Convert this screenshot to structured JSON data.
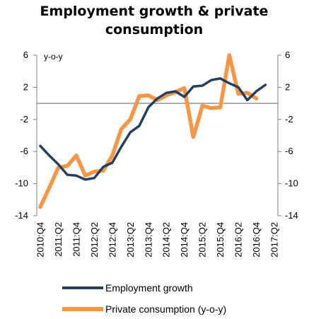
{
  "chart_data": {
    "type": "line",
    "title": "Employment growth & private consumption",
    "title_lines": [
      "Employment growth & private",
      "consumption"
    ],
    "unit_label": "y-o-y",
    "ylim": [
      -14,
      6
    ],
    "y_ticks": [
      6,
      2,
      -2,
      -6,
      -10,
      -14
    ],
    "y_tick_labels": [
      "6",
      "2",
      "-2",
      "-6",
      "-10",
      "-14"
    ],
    "reference_line": 0,
    "grid": false,
    "legend_placement": "bottom",
    "x": [
      "2010:Q4",
      "2011:Q1",
      "2011:Q2",
      "2011:Q3",
      "2011:Q4",
      "2012:Q1",
      "2012:Q2",
      "2012:Q3",
      "2012:Q4",
      "2013:Q1",
      "2013:Q2",
      "2013:Q3",
      "2013:Q4",
      "2014:Q1",
      "2014:Q2",
      "2014:Q3",
      "2014:Q4",
      "2015:Q1",
      "2015:Q2",
      "2015:Q3",
      "2015:Q4",
      "2016:Q1",
      "2016:Q2",
      "2016:Q3",
      "2016:Q4",
      "2017:Q1",
      "2017:Q2"
    ],
    "x_tick_labels": [
      "2010:Q4",
      "2011:Q2",
      "2011:Q4",
      "2012:Q2",
      "2012:Q4",
      "2013:Q2",
      "2013:Q4",
      "2014:Q2",
      "2014:Q4",
      "2015:Q2",
      "2015:Q4",
      "2016:Q2",
      "2016:Q4",
      "2017:Q2"
    ],
    "series": [
      {
        "name": "Employment growth",
        "color": "#243f60",
        "values": [
          -5.3,
          -6.5,
          -7.6,
          -8.9,
          -9.0,
          -9.5,
          -9.3,
          -7.9,
          -7.4,
          -5.4,
          -3.6,
          -2.8,
          -0.5,
          0.6,
          1.3,
          1.5,
          0.8,
          2.1,
          2.2,
          2.9,
          3.1,
          2.5,
          2.0,
          0.4,
          1.5,
          2.3,
          null
        ]
      },
      {
        "name": "Private consumption (y-o-y)",
        "color": "#f79646",
        "values": [
          -12.9,
          -10.5,
          -8.0,
          -7.8,
          -6.5,
          -9.0,
          -8.5,
          -8.4,
          -6.5,
          -3.2,
          -2.0,
          0.9,
          1.0,
          0.4,
          1.0,
          1.4,
          1.9,
          -4.2,
          -0.3,
          -0.6,
          -0.5,
          6.0,
          1.2,
          1.3,
          0.6,
          null,
          null
        ]
      }
    ]
  }
}
